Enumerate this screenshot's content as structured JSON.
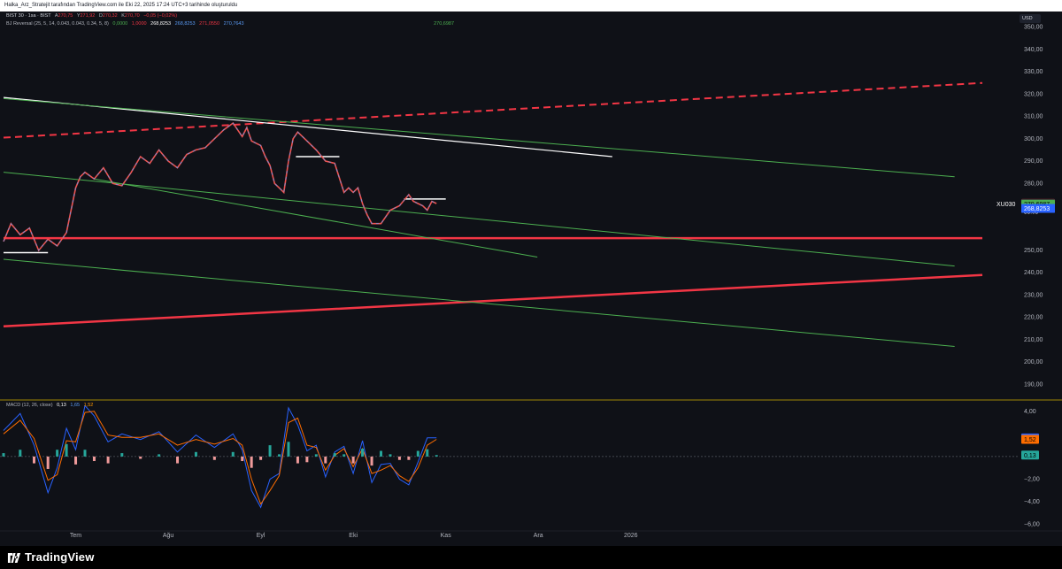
{
  "header": {
    "attribution": "Halka_Arz_Stratejit tarafından TradingView.com ile Eki 22, 2025 17:24 UTC+3 tarihinde oluşturuldu"
  },
  "legend": {
    "symbol": "BIST 30 · 1sa · BIST",
    "ohlc": [
      {
        "label": "A",
        "value": "270,75"
      },
      {
        "label": "Y",
        "value": "271,92"
      },
      {
        "label": "D",
        "value": "270,32"
      },
      {
        "label": "K",
        "value": "270,70"
      },
      {
        "label": "",
        "value": "−0,05 (−0,02%)"
      }
    ],
    "indicator_name": "BJ Reversal (25, 5, 14, 0.043, 0.043, 0.34, 5, 8)",
    "indicator_values": [
      "0,0000",
      "1,0000",
      "268,8253",
      "268,8253",
      "271,0550",
      "270,7643",
      "270,6987"
    ],
    "macd_name": "MACD (12, 26, close)",
    "macd_values": [
      "0,13",
      "1,65",
      "1,52"
    ]
  },
  "currency": "USD",
  "price_badges": [
    {
      "text": "271,0550",
      "bg": "#f23645",
      "fg": "#ffffff",
      "price": 271.055
    },
    {
      "text": "270,9220",
      "bg": "#0f1117",
      "fg": "#ffffff",
      "price": 270.922
    },
    {
      "text": "270,7643",
      "bg": "#5b9cf6",
      "fg": "#000000",
      "price": 270.764
    },
    {
      "text": "270,70",
      "bg": "#000000",
      "fg": "#ffffff",
      "price": 270.7,
      "sub": "35:05",
      "symbol": "XU030"
    },
    {
      "text": "270,6987",
      "bg": "#4caf50",
      "fg": "#000000",
      "price": 270.699
    },
    {
      "text": "268,8253",
      "bg": "#2962ff",
      "fg": "#ffffff",
      "price": 268.825
    },
    {
      "text": "268,8253",
      "bg": "#2962ff",
      "fg": "#ffffff",
      "price": 268.825
    }
  ],
  "macd_badges": [
    {
      "text": "1,65",
      "bg": "#2962ff",
      "fg": "#ffffff",
      "value": 1.65
    },
    {
      "text": "1,52",
      "bg": "#ff6d00",
      "fg": "#000000",
      "value": 1.52
    },
    {
      "text": "0,13",
      "bg": "#26a69a",
      "fg": "#000000",
      "value": 0.13
    }
  ],
  "chart_data": {
    "type": "line",
    "title": "BIST 30 · 1sa · BIST",
    "price_axis": {
      "ticks": [
        350,
        340,
        330,
        320,
        310,
        300,
        290,
        280,
        250,
        240,
        230,
        220,
        210,
        200,
        190
      ],
      "tick_labels": [
        "350,00",
        "340,00",
        "330,00",
        "320,00",
        "310,00",
        "300,00",
        "290,00",
        "280,00",
        "250,00",
        "240,00",
        "230,00",
        "220,00",
        "210,00",
        "200,00",
        "190,00"
      ],
      "range": [
        183,
        357
      ]
    },
    "macd_axis": {
      "ticks": [
        4,
        -2,
        -4,
        -6
      ],
      "tick_labels": [
        "4,00",
        "−2,00",
        "−4,00",
        "−6,00"
      ],
      "range": [
        -6.5,
        5
      ]
    },
    "time_axis": {
      "labels": [
        "Tem",
        "Ağu",
        "Eyl",
        "Eki",
        "Kas",
        "Ara",
        "2026"
      ],
      "label_positions": [
        0.0,
        1.0,
        2.0,
        3.0,
        4.0,
        5.0,
        6.0
      ]
    },
    "x_range": [
      -0.78,
      9.8
    ],
    "price_series": {
      "name": "XU030",
      "x": [
        -0.78,
        -0.7,
        -0.6,
        -0.5,
        -0.4,
        -0.3,
        -0.2,
        -0.1,
        0.0,
        0.05,
        0.1,
        0.2,
        0.3,
        0.4,
        0.5,
        0.6,
        0.7,
        0.8,
        0.9,
        1.0,
        1.1,
        1.2,
        1.3,
        1.4,
        1.5,
        1.6,
        1.7,
        1.8,
        1.85,
        1.9,
        2.0,
        2.05,
        2.1,
        2.15,
        2.2,
        2.25,
        2.3,
        2.35,
        2.4,
        2.5,
        2.6,
        2.7,
        2.8,
        2.9,
        2.95,
        3.0,
        3.05,
        3.1,
        3.15,
        3.2,
        3.3,
        3.4,
        3.5,
        3.6,
        3.65,
        3.7,
        3.75,
        3.8,
        3.85,
        3.9
      ],
      "y": [
        254,
        262,
        257,
        260,
        250,
        255,
        252,
        258,
        278,
        283,
        285,
        282,
        287,
        280,
        279,
        285,
        292,
        289,
        295,
        290,
        287,
        293,
        295,
        296,
        300,
        304,
        307,
        301,
        305,
        299,
        297,
        292,
        288,
        280,
        278,
        276,
        290,
        300,
        303,
        299,
        295,
        290,
        289,
        276,
        278,
        276,
        278,
        271,
        266,
        262,
        262,
        268,
        270,
        275,
        272,
        271,
        270,
        268,
        272,
        271
      ]
    },
    "macd_series": [
      {
        "name": "MACD",
        "color": "#2962ff",
        "x": [
          -0.78,
          -0.6,
          -0.45,
          -0.3,
          -0.2,
          -0.1,
          0.0,
          0.1,
          0.2,
          0.35,
          0.5,
          0.7,
          0.9,
          1.1,
          1.3,
          1.5,
          1.7,
          1.8,
          1.9,
          2.0,
          2.1,
          2.2,
          2.3,
          2.4,
          2.5,
          2.6,
          2.7,
          2.8,
          2.9,
          3.0,
          3.1,
          3.2,
          3.3,
          3.4,
          3.5,
          3.6,
          3.7,
          3.8,
          3.9
        ],
        "y": [
          2.3,
          3.8,
          1.0,
          -3.2,
          -1.0,
          2.5,
          0.6,
          4.5,
          3.6,
          1.3,
          2.0,
          1.5,
          2.2,
          0.4,
          1.9,
          0.8,
          2.0,
          0.6,
          -3.0,
          -4.5,
          -2.0,
          -1.5,
          4.3,
          2.8,
          0.5,
          1.0,
          -1.8,
          0.4,
          0.9,
          -1.5,
          1.4,
          -2.3,
          -0.7,
          -0.6,
          -2.0,
          -2.5,
          -0.5,
          1.65,
          1.65
        ]
      },
      {
        "name": "Signal",
        "color": "#ff6d00",
        "x": [
          -0.78,
          -0.6,
          -0.45,
          -0.3,
          -0.2,
          -0.1,
          0.0,
          0.1,
          0.2,
          0.35,
          0.5,
          0.7,
          0.9,
          1.1,
          1.3,
          1.5,
          1.7,
          1.8,
          1.9,
          2.0,
          2.1,
          2.2,
          2.3,
          2.4,
          2.5,
          2.6,
          2.7,
          2.8,
          2.9,
          3.0,
          3.1,
          3.2,
          3.3,
          3.4,
          3.5,
          3.6,
          3.7,
          3.8,
          3.9
        ],
        "y": [
          2.0,
          3.2,
          1.6,
          -2.1,
          -1.6,
          1.4,
          1.3,
          3.9,
          4.0,
          1.9,
          1.7,
          1.7,
          2.0,
          1.0,
          1.5,
          1.1,
          1.6,
          1.0,
          -2.0,
          -4.2,
          -3.0,
          -1.7,
          3.0,
          3.4,
          1.0,
          0.8,
          -1.2,
          0.1,
          0.7,
          -0.9,
          0.7,
          -1.5,
          -1.2,
          -0.8,
          -1.7,
          -2.2,
          -1.0,
          1.0,
          1.52
        ]
      }
    ],
    "annotation_lines": [
      {
        "color": "#f23645",
        "dash": true,
        "width": 2,
        "x1": -0.78,
        "y1": 300.5,
        "x2": 9.8,
        "y2": 325
      },
      {
        "color": "#f23645",
        "dash": false,
        "width": 2.5,
        "x1": -0.78,
        "y1": 216,
        "x2": 9.8,
        "y2": 239
      },
      {
        "color": "#f23645",
        "dash": false,
        "width": 2.5,
        "x1": -0.78,
        "y1": 255.5,
        "x2": 9.8,
        "y2": 255.5
      },
      {
        "color": "#ffffff",
        "dash": false,
        "width": 1.2,
        "x1": -0.78,
        "y1": 318.5,
        "x2": 5.8,
        "y2": 292
      },
      {
        "color": "#4caf50",
        "dash": false,
        "width": 1,
        "x1": -0.78,
        "y1": 318,
        "x2": 9.5,
        "y2": 283
      },
      {
        "color": "#4caf50",
        "dash": false,
        "width": 1,
        "x1": -0.78,
        "y1": 285,
        "x2": 9.5,
        "y2": 243
      },
      {
        "color": "#4caf50",
        "dash": false,
        "width": 1,
        "x1": 0.2,
        "y1": 282,
        "x2": 4.99,
        "y2": 247
      },
      {
        "color": "#4caf50",
        "dash": false,
        "width": 1,
        "x1": -0.78,
        "y1": 246,
        "x2": 9.5,
        "y2": 207
      }
    ]
  }
}
